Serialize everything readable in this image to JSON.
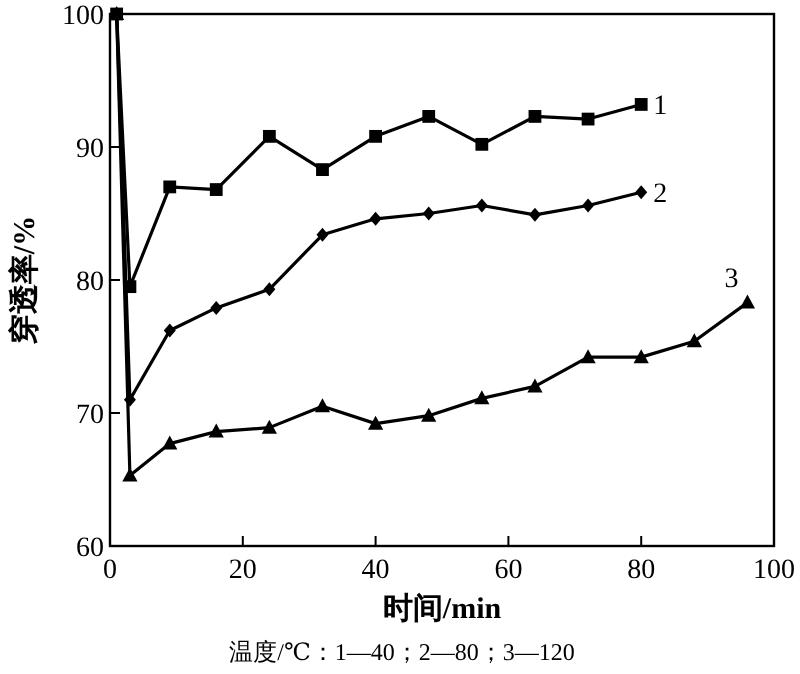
{
  "chart_data": {
    "type": "line",
    "xlabel": "时间/min",
    "ylabel": "穿透率/%",
    "xlim": [
      0,
      100
    ],
    "xticks": [
      0,
      20,
      40,
      60,
      80,
      100
    ],
    "ylim": [
      60,
      100
    ],
    "yticks": [
      60,
      70,
      80,
      90,
      100
    ],
    "grid": false,
    "line_style": "solid",
    "annotations": [
      "温度/℃：1—40；2—80；3—120"
    ],
    "series": [
      {
        "name": "1",
        "color": "#000000",
        "marker": "square",
        "x": [
          1,
          3,
          9,
          16,
          24,
          32,
          40,
          48,
          56,
          64,
          72,
          80
        ],
        "values": [
          100,
          79.5,
          87,
          86.8,
          90.8,
          88.3,
          90.8,
          92.3,
          90.2,
          92.3,
          92.1,
          93.2
        ]
      },
      {
        "name": "2",
        "color": "#000000",
        "marker": "diamond",
        "x": [
          1,
          3,
          9,
          16,
          24,
          32,
          40,
          48,
          56,
          64,
          72,
          80
        ],
        "values": [
          100,
          71,
          76.2,
          77.9,
          79.3,
          83.4,
          84.6,
          85,
          85.6,
          84.9,
          85.6,
          86.6
        ]
      },
      {
        "name": "3",
        "color": "#000000",
        "marker": "triangle",
        "x": [
          1,
          3,
          9,
          16,
          24,
          32,
          40,
          48,
          56,
          64,
          72,
          80,
          88,
          96
        ],
        "values": [
          100,
          65.3,
          67.7,
          68.6,
          68.9,
          70.5,
          69.2,
          69.8,
          71.1,
          72,
          74.2,
          74.2,
          75.4,
          78.3
        ]
      }
    ]
  }
}
